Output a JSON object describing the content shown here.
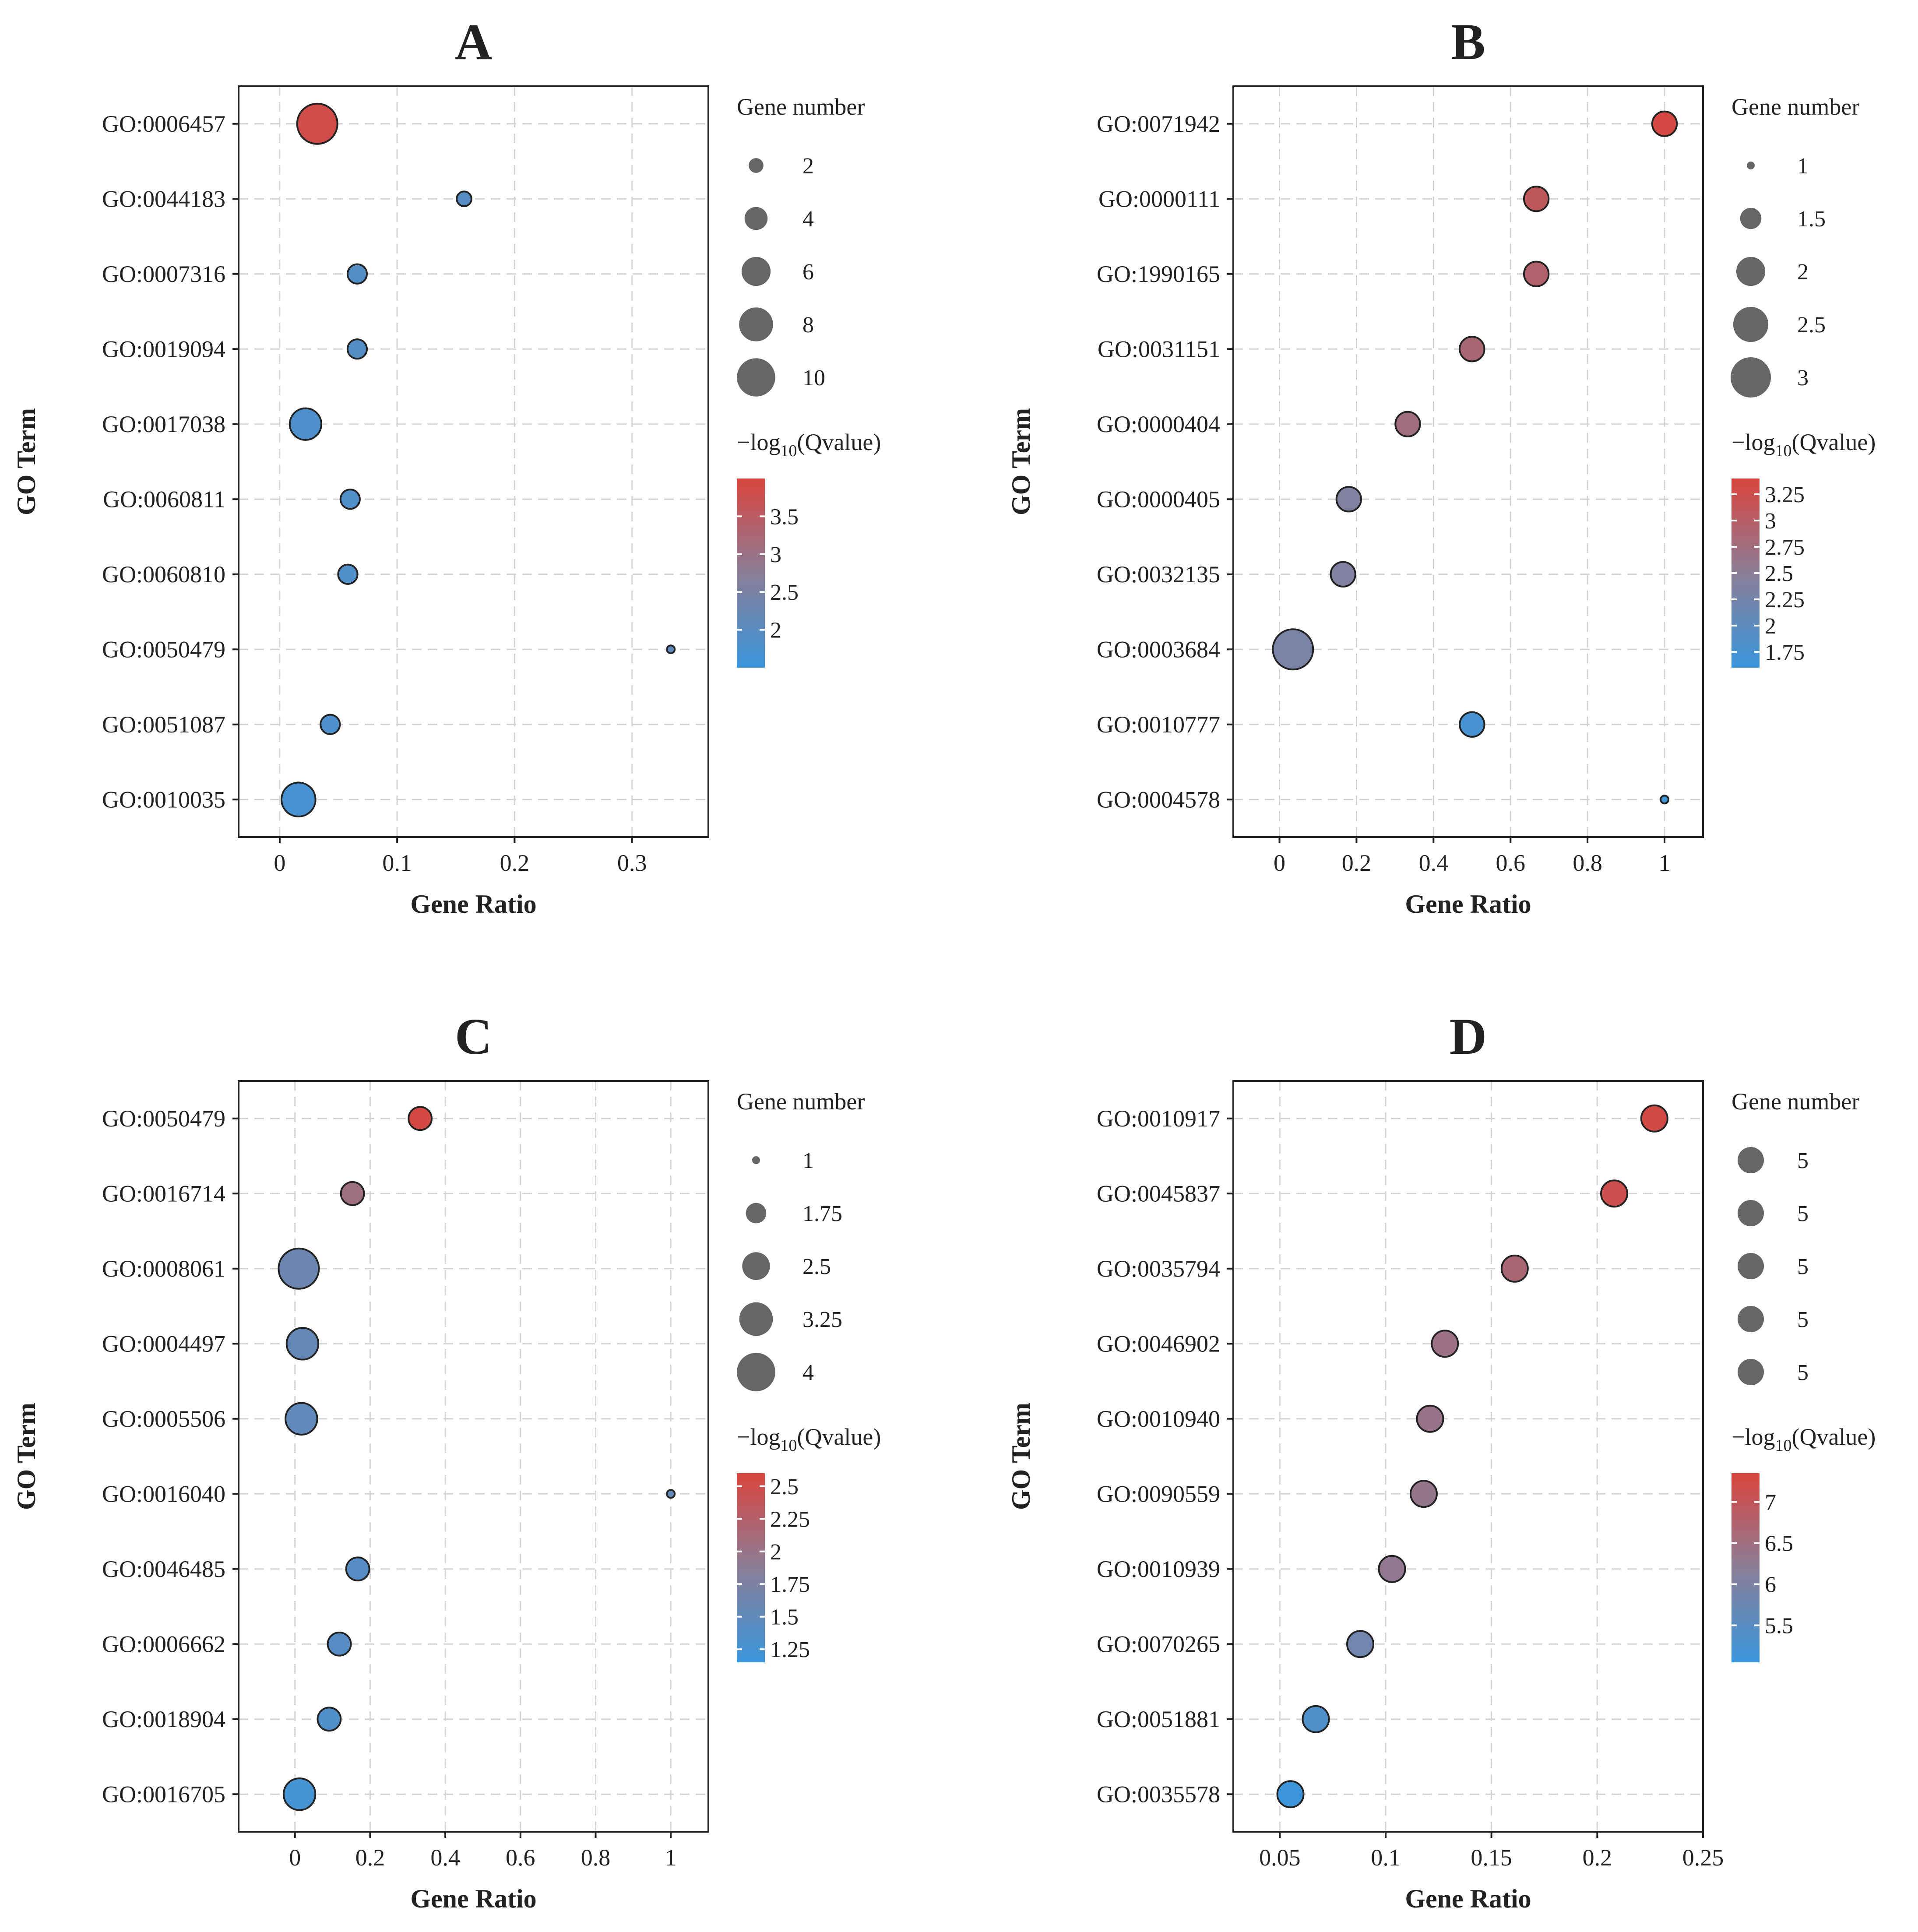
{
  "figure": {
    "title": ""
  },
  "chart_data": [
    {
      "panel": "A",
      "type": "scatter",
      "xlabel": "Gene Ratio",
      "ylabel": "GO Term",
      "xlim": [
        -0.035,
        0.365
      ],
      "xticks": [
        0,
        0.1,
        0.2,
        0.3
      ],
      "xtick_labels": [
        "0",
        "0.1",
        "0.2",
        "0.3"
      ],
      "grid": true,
      "categories": [
        "GO:0006457",
        "GO:0044183",
        "GO:0007316",
        "GO:0019094",
        "GO:0017038",
        "GO:0060811",
        "GO:0060810",
        "GO:0050479",
        "GO:0051087",
        "GO:0010035"
      ],
      "gene_ratio": [
        0.032,
        0.157,
        0.066,
        0.066,
        0.022,
        0.06,
        0.058,
        0.333,
        0.043,
        0.016
      ],
      "gene_number": [
        11,
        2,
        3,
        3,
        7,
        3,
        3,
        1,
        3,
        8
      ],
      "neg_log10_qvalue": [
        3.85,
        1.95,
        1.9,
        1.9,
        1.8,
        1.85,
        1.85,
        2.1,
        1.8,
        1.7
      ],
      "size_legend": {
        "title": "Gene number",
        "values": [
          2,
          4,
          6,
          8,
          10
        ],
        "labels": [
          "2",
          "4",
          "6",
          "8",
          "10"
        ]
      },
      "color_legend": {
        "title_prefix": "−log",
        "title_sub": "10",
        "title_suffix": "(Qvalue)",
        "min": 1.5,
        "max": 4.0,
        "ticks": [
          3.5,
          3,
          2.5,
          2
        ],
        "tick_labels": [
          "3.5",
          "3",
          "2.5",
          "2"
        ],
        "low_color": "#3A96DD",
        "mid_color": "#8A7D96",
        "high_color": "#D9453E"
      }
    },
    {
      "panel": "B",
      "type": "scatter",
      "xlabel": "Gene Ratio",
      "ylabel": "GO Term",
      "xlim": [
        -0.12,
        1.1
      ],
      "xticks": [
        0,
        0.2,
        0.4,
        0.6,
        0.8,
        1
      ],
      "xtick_labels": [
        "0",
        "0.2",
        "0.4",
        "0.6",
        "0.8",
        "1"
      ],
      "grid": true,
      "categories": [
        "GO:0071942",
        "GO:0000111",
        "GO:1990165",
        "GO:0031151",
        "GO:0000404",
        "GO:0000405",
        "GO:0032135",
        "GO:0003684",
        "GO:0010777",
        "GO:0004578"
      ],
      "gene_ratio": [
        1.0,
        0.667,
        0.667,
        0.5,
        0.333,
        0.18,
        0.165,
        0.035,
        0.5,
        1.0
      ],
      "gene_number": [
        1.7,
        1.7,
        1.7,
        1.7,
        1.7,
        1.7,
        1.7,
        3,
        1.7,
        1
      ],
      "neg_log10_qvalue": [
        3.35,
        3.1,
        2.95,
        2.85,
        2.75,
        2.4,
        2.4,
        2.3,
        1.75,
        1.7
      ],
      "size_legend": {
        "title": "Gene number",
        "values": [
          1,
          1.5,
          2,
          2.5,
          3
        ],
        "labels": [
          "1",
          "1.5",
          "2",
          "2.5",
          "3"
        ]
      },
      "color_legend": {
        "title_prefix": "−log",
        "title_sub": "10",
        "title_suffix": "(Qvalue)",
        "min": 1.6,
        "max": 3.4,
        "ticks": [
          3.25,
          3,
          2.75,
          2.5,
          2.25,
          2,
          1.75
        ],
        "tick_labels": [
          "3.25",
          "3",
          "2.75",
          "2.5",
          "2.25",
          "2",
          "1.75"
        ],
        "low_color": "#3A96DD",
        "mid_color": "#8A7D96",
        "high_color": "#D9453E"
      }
    },
    {
      "panel": "C",
      "type": "scatter",
      "xlabel": "Gene Ratio",
      "ylabel": "GO Term",
      "xlim": [
        -0.15,
        1.1
      ],
      "xticks": [
        0,
        0.2,
        0.4,
        0.6,
        0.8,
        1
      ],
      "xtick_labels": [
        "0",
        "0.2",
        "0.4",
        "0.6",
        "0.8",
        "1"
      ],
      "grid": true,
      "categories": [
        "GO:0050479",
        "GO:0016714",
        "GO:0008061",
        "GO:0004497",
        "GO:0005506",
        "GO:0016040",
        "GO:0046485",
        "GO:0006662",
        "GO:0018904",
        "GO:0016705"
      ],
      "gene_ratio": [
        0.333,
        0.153,
        0.01,
        0.02,
        0.017,
        1.0,
        0.167,
        0.118,
        0.091,
        0.012
      ],
      "gene_number": [
        2,
        2,
        4.3,
        3,
        3,
        1,
        2,
        2,
        2,
        3
      ],
      "neg_log10_qvalue": [
        2.55,
        2.05,
        1.6,
        1.55,
        1.5,
        1.5,
        1.4,
        1.4,
        1.35,
        1.25
      ],
      "size_legend": {
        "title": "Gene number",
        "values": [
          1,
          1.75,
          2.5,
          3.25,
          4
        ],
        "labels": [
          "1",
          "1.75",
          "2.5",
          "3.25",
          "4"
        ]
      },
      "color_legend": {
        "title_prefix": "−log",
        "title_sub": "10",
        "title_suffix": "(Qvalue)",
        "min": 1.15,
        "max": 2.6,
        "ticks": [
          2.5,
          2.25,
          2,
          1.75,
          1.5,
          1.25
        ],
        "tick_labels": [
          "2.5",
          "2.25",
          "2",
          "1.75",
          "1.5",
          "1.25"
        ],
        "low_color": "#3A96DD",
        "mid_color": "#8A7D96",
        "high_color": "#D9453E"
      }
    },
    {
      "panel": "D",
      "type": "scatter",
      "xlabel": "Gene Ratio",
      "ylabel": "GO Term",
      "xlim": [
        0.028,
        0.25
      ],
      "xticks": [
        0.05,
        0.1,
        0.15,
        0.2,
        0.25
      ],
      "xtick_labels": [
        "0.05",
        "0.1",
        "0.15",
        "0.2",
        "0.25"
      ],
      "grid": true,
      "categories": [
        "GO:0010917",
        "GO:0045837",
        "GO:0035794",
        "GO:0046902",
        "GO:0010940",
        "GO:0090559",
        "GO:0010939",
        "GO:0070265",
        "GO:0051881",
        "GO:0035578"
      ],
      "gene_ratio": [
        0.227,
        0.208,
        0.161,
        0.128,
        0.121,
        0.118,
        0.103,
        0.088,
        0.067,
        0.055
      ],
      "gene_number": [
        5,
        5,
        5,
        5,
        5,
        5,
        5,
        5,
        5,
        5
      ],
      "neg_log10_qvalue": [
        7.25,
        7.15,
        6.65,
        6.45,
        6.4,
        6.35,
        6.3,
        5.85,
        5.35,
        5.1
      ],
      "size_legend": {
        "title": "Gene number",
        "values": [
          5,
          5,
          5,
          5,
          5
        ],
        "labels": [
          "5",
          "5",
          "5",
          "5",
          "5"
        ]
      },
      "color_legend": {
        "title_prefix": "−log",
        "title_sub": "10",
        "title_suffix": "(Qvalue)",
        "min": 5.05,
        "max": 7.35,
        "ticks": [
          7,
          6.5,
          6,
          5.5
        ],
        "tick_labels": [
          "7",
          "6.5",
          "6",
          "5.5"
        ],
        "low_color": "#3A96DD",
        "mid_color": "#8A7D96",
        "high_color": "#D9453E"
      }
    }
  ]
}
